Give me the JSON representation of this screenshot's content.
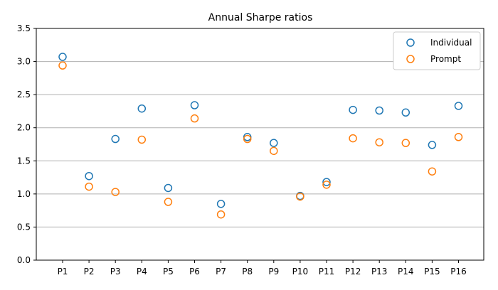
{
  "chart_data": {
    "type": "scatter",
    "title": "Annual Sharpe ratios",
    "xlabel": "",
    "ylabel": "",
    "categories": [
      "P1",
      "P2",
      "P3",
      "P4",
      "P5",
      "P6",
      "P7",
      "P8",
      "P9",
      "P10",
      "P11",
      "P12",
      "P13",
      "P14",
      "P15",
      "P16"
    ],
    "series": [
      {
        "name": "Individual",
        "color": "#1f77b4",
        "marker": "open-circle",
        "values": [
          3.07,
          1.27,
          1.83,
          2.29,
          1.09,
          2.34,
          0.85,
          1.86,
          1.77,
          0.97,
          1.18,
          2.27,
          2.26,
          2.23,
          1.74,
          2.33
        ]
      },
      {
        "name": "Prompt",
        "color": "#ff7f0e",
        "marker": "open-circle",
        "values": [
          2.94,
          1.11,
          1.03,
          1.82,
          0.88,
          2.14,
          0.69,
          1.83,
          1.65,
          0.96,
          1.14,
          1.84,
          1.78,
          1.77,
          1.34,
          1.86
        ]
      }
    ],
    "yticks": [
      "0.0",
      "0.5",
      "1.0",
      "1.5",
      "2.0",
      "2.5",
      "3.0",
      "3.5"
    ],
    "ylim": [
      0,
      3.5
    ],
    "grid": "horizontal",
    "legend_position": "top-right"
  }
}
